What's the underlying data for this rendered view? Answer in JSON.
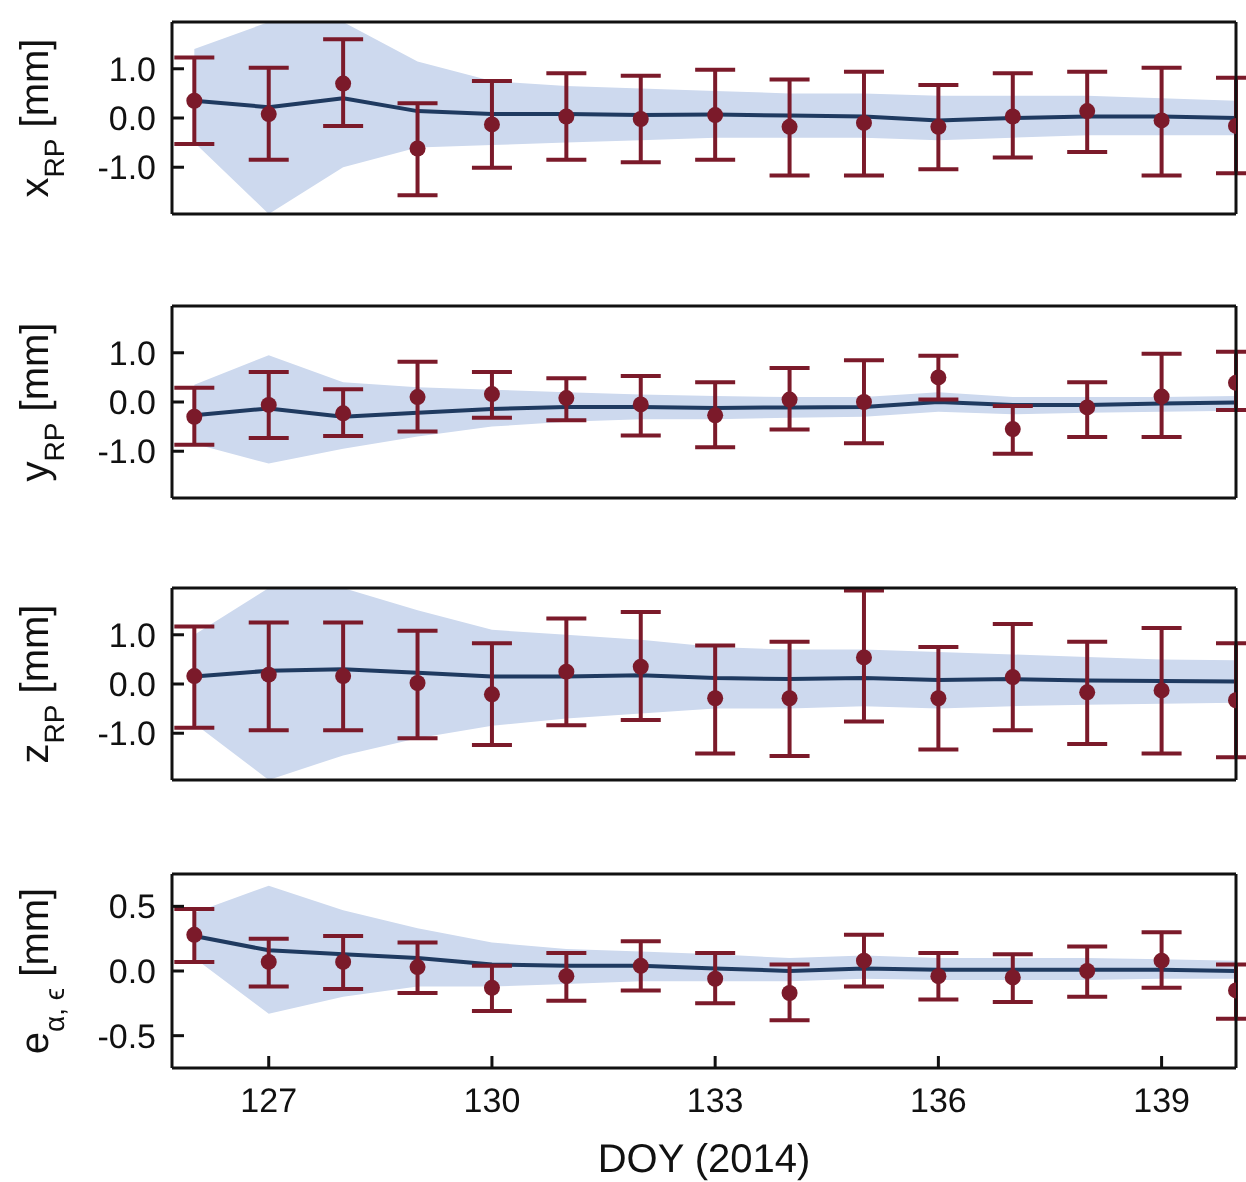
{
  "chart_data": [
    {
      "type": "line",
      "ylabel": "x$_{RP}$ [mm]",
      "x": [
        126,
        127,
        128,
        129,
        130,
        131,
        132,
        133,
        134,
        135,
        136,
        137,
        138,
        139,
        140
      ],
      "xlim": [
        125.7,
        140
      ],
      "xticks": [
        127,
        130,
        133,
        136,
        139
      ],
      "ylim": [
        -1.95,
        1.95
      ],
      "yticks": [
        {
          "value": -1,
          "label": "-1.0"
        },
        {
          "value": 0,
          "label": "0.0"
        },
        {
          "value": 1,
          "label": "1.0"
        }
      ],
      "tick_labels": "y",
      "series": [
        {
          "color": "#1f3a60",
          "marker": "none",
          "values": [
            0.35,
            0.22,
            0.4,
            0.14,
            0.08,
            0.08,
            0.06,
            0.07,
            0.05,
            0.03,
            -0.05,
            0.0,
            0.03,
            0.03,
            0.0
          ],
          "lower": [
            -0.5,
            -1.95,
            -1.0,
            -0.6,
            -0.55,
            -0.5,
            -0.45,
            -0.4,
            -0.4,
            -0.4,
            -0.45,
            -0.4,
            -0.35,
            -0.35,
            -0.35
          ],
          "upper": [
            1.4,
            1.95,
            1.95,
            1.15,
            0.75,
            0.65,
            0.6,
            0.55,
            0.5,
            0.5,
            0.45,
            0.45,
            0.45,
            0.4,
            0.35
          ]
        },
        {
          "type": "scatter",
          "color": "#7b1a2a",
          "marker": "circle",
          "values": [
            0.35,
            0.08,
            0.7,
            -0.62,
            -0.13,
            0.03,
            -0.02,
            0.06,
            -0.18,
            -0.1,
            -0.18,
            0.03,
            0.14,
            -0.05,
            -0.16
          ],
          "errors": [
            [
              -0.53,
              1.23
            ],
            [
              -0.85,
              1.02
            ],
            [
              -0.16,
              1.6
            ],
            [
              -1.57,
              0.3
            ],
            [
              -1.01,
              0.75
            ],
            [
              -0.85,
              0.91
            ],
            [
              -0.9,
              0.86
            ],
            [
              -0.85,
              0.98
            ],
            [
              -1.17,
              0.78
            ],
            [
              -1.17,
              0.94
            ],
            [
              -1.04,
              0.67
            ],
            [
              -0.8,
              0.91
            ],
            [
              -0.69,
              0.94
            ],
            [
              -1.17,
              1.02
            ],
            [
              -1.12,
              0.82
            ]
          ]
        }
      ]
    },
    {
      "type": "line",
      "ylabel": "y$_{RP}$ [mm]",
      "x": [
        126,
        127,
        128,
        129,
        130,
        131,
        132,
        133,
        134,
        135,
        136,
        137,
        138,
        139,
        140
      ],
      "xlim": [
        125.7,
        140
      ],
      "xticks": [
        127,
        130,
        133,
        136,
        139
      ],
      "ylim": [
        -1.95,
        1.95
      ],
      "yticks": [
        {
          "value": -1,
          "label": "-1.0"
        },
        {
          "value": 0,
          "label": "0.0"
        },
        {
          "value": 1,
          "label": "1.0"
        }
      ],
      "tick_labels": "y",
      "series": [
        {
          "color": "#1f3a60",
          "marker": "none",
          "values": [
            -0.27,
            -0.13,
            -0.3,
            -0.22,
            -0.14,
            -0.1,
            -0.1,
            -0.12,
            -0.11,
            -0.1,
            0.0,
            -0.06,
            -0.06,
            -0.03,
            -0.01
          ],
          "lower": [
            -0.85,
            -1.25,
            -0.95,
            -0.7,
            -0.5,
            -0.4,
            -0.35,
            -0.35,
            -0.32,
            -0.3,
            -0.2,
            -0.25,
            -0.22,
            -0.2,
            -0.18
          ],
          "upper": [
            0.35,
            0.95,
            0.4,
            0.3,
            0.25,
            0.2,
            0.15,
            0.12,
            0.1,
            0.1,
            0.2,
            0.1,
            0.1,
            0.1,
            0.12
          ]
        },
        {
          "type": "scatter",
          "color": "#7b1a2a",
          "marker": "circle",
          "values": [
            -0.3,
            -0.06,
            -0.23,
            0.1,
            0.16,
            0.08,
            -0.05,
            -0.27,
            0.05,
            0.0,
            0.5,
            -0.55,
            -0.11,
            0.11,
            0.39
          ],
          "errors": [
            [
              -0.87,
              0.29
            ],
            [
              -0.73,
              0.61
            ],
            [
              -0.69,
              0.26
            ],
            [
              -0.6,
              0.82
            ],
            [
              -0.32,
              0.61
            ],
            [
              -0.37,
              0.48
            ],
            [
              -0.68,
              0.53
            ],
            [
              -0.92,
              0.4
            ],
            [
              -0.56,
              0.69
            ],
            [
              -0.84,
              0.85
            ],
            [
              0.05,
              0.94
            ],
            [
              -1.05,
              -0.08
            ],
            [
              -0.71,
              0.4
            ],
            [
              -0.71,
              0.98
            ],
            [
              -0.16,
              1.02
            ]
          ]
        }
      ]
    },
    {
      "type": "line",
      "ylabel": "z$_{RP}$ [mm]",
      "x": [
        126,
        127,
        128,
        129,
        130,
        131,
        132,
        133,
        134,
        135,
        136,
        137,
        138,
        139,
        140
      ],
      "xlim": [
        125.7,
        140
      ],
      "xticks": [
        127,
        130,
        133,
        136,
        139
      ],
      "ylim": [
        -1.95,
        1.95
      ],
      "yticks": [
        {
          "value": -1,
          "label": "-1.0"
        },
        {
          "value": 0,
          "label": "0.0"
        },
        {
          "value": 1,
          "label": "1.0"
        }
      ],
      "tick_labels": "y",
      "series": [
        {
          "color": "#1f3a60",
          "marker": "none",
          "values": [
            0.15,
            0.27,
            0.3,
            0.23,
            0.15,
            0.15,
            0.18,
            0.12,
            0.1,
            0.12,
            0.08,
            0.1,
            0.07,
            0.06,
            0.05
          ],
          "lower": [
            -0.8,
            -1.95,
            -1.45,
            -1.1,
            -0.85,
            -0.7,
            -0.6,
            -0.5,
            -0.5,
            -0.45,
            -0.5,
            -0.45,
            -0.42,
            -0.4,
            -0.38
          ],
          "upper": [
            1.0,
            1.95,
            1.95,
            1.5,
            1.1,
            1.0,
            0.9,
            0.75,
            0.7,
            0.7,
            0.65,
            0.6,
            0.55,
            0.5,
            0.48
          ]
        },
        {
          "type": "scatter",
          "color": "#7b1a2a",
          "marker": "circle",
          "values": [
            0.16,
            0.19,
            0.16,
            0.02,
            -0.21,
            0.25,
            0.35,
            -0.29,
            -0.29,
            0.54,
            -0.29,
            0.14,
            -0.17,
            -0.13,
            -0.33
          ],
          "errors": [
            [
              -0.89,
              1.17
            ],
            [
              -0.94,
              1.25
            ],
            [
              -0.94,
              1.25
            ],
            [
              -1.1,
              1.08
            ],
            [
              -1.24,
              0.83
            ],
            [
              -0.84,
              1.33
            ],
            [
              -0.73,
              1.46
            ],
            [
              -1.41,
              0.78
            ],
            [
              -1.46,
              0.86
            ],
            [
              -0.76,
              1.9
            ],
            [
              -1.33,
              0.75
            ],
            [
              -0.94,
              1.22
            ],
            [
              -1.22,
              0.86
            ],
            [
              -1.41,
              1.14
            ],
            [
              -1.49,
              0.83
            ]
          ]
        }
      ]
    },
    {
      "type": "line",
      "ylabel": "e$_{α, ϵ}$ [mm]",
      "xlabel": "DOY (2014)",
      "x": [
        126,
        127,
        128,
        129,
        130,
        131,
        132,
        133,
        134,
        135,
        136,
        137,
        138,
        139,
        140
      ],
      "xlim": [
        125.7,
        140
      ],
      "xticks": [
        127,
        130,
        133,
        136,
        139
      ],
      "ylim": [
        -0.75,
        0.75
      ],
      "yticks": [
        {
          "value": -0.5,
          "label": "-0.5"
        },
        {
          "value": 0,
          "label": "0.0"
        },
        {
          "value": 0.5,
          "label": "0.5"
        }
      ],
      "series": [
        {
          "color": "#1f3a60",
          "marker": "none",
          "values": [
            0.27,
            0.16,
            0.13,
            0.1,
            0.05,
            0.04,
            0.04,
            0.02,
            0.0,
            0.02,
            0.01,
            0.01,
            0.01,
            0.01,
            0.0
          ],
          "lower": [
            0.1,
            -0.33,
            -0.2,
            -0.12,
            -0.12,
            -0.1,
            -0.08,
            -0.08,
            -0.08,
            -0.06,
            -0.07,
            -0.07,
            -0.07,
            -0.06,
            -0.06
          ],
          "upper": [
            0.45,
            0.66,
            0.47,
            0.33,
            0.22,
            0.17,
            0.15,
            0.13,
            0.1,
            0.12,
            0.1,
            0.1,
            0.1,
            0.09,
            0.08
          ]
        },
        {
          "type": "scatter",
          "color": "#7b1a2a",
          "marker": "circle",
          "values": [
            0.28,
            0.07,
            0.07,
            0.03,
            -0.13,
            -0.04,
            0.04,
            -0.06,
            -0.17,
            0.08,
            -0.04,
            -0.05,
            0.0,
            0.08,
            -0.15
          ],
          "errors": [
            [
              0.07,
              0.48
            ],
            [
              -0.12,
              0.25
            ],
            [
              -0.14,
              0.27
            ],
            [
              -0.17,
              0.22
            ],
            [
              -0.31,
              0.04
            ],
            [
              -0.23,
              0.14
            ],
            [
              -0.15,
              0.23
            ],
            [
              -0.25,
              0.14
            ],
            [
              -0.38,
              0.05
            ],
            [
              -0.12,
              0.28
            ],
            [
              -0.22,
              0.14
            ],
            [
              -0.24,
              0.13
            ],
            [
              -0.2,
              0.19
            ],
            [
              -0.13,
              0.3
            ],
            [
              -0.37,
              0.05
            ]
          ]
        }
      ]
    }
  ]
}
